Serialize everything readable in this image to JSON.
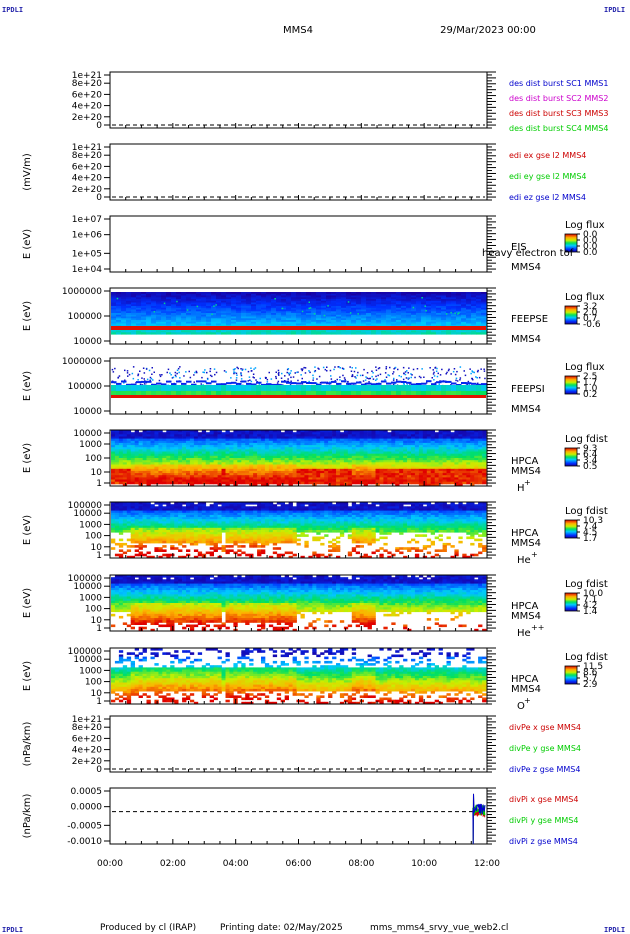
{
  "header": {
    "title": "MMS4",
    "date": "29/Mar/2023 00:00",
    "corner_label": "IPDLI"
  },
  "footer": {
    "produced_by": "Produced by cl (IRAP)",
    "printing_date": "Printing date: 02/May/2025",
    "script_name": "mms_mms4_srvy_vue_web2.cl"
  },
  "colors": {
    "dash": "#000000",
    "blue": "#0000cc",
    "magenta": "#cc00cc",
    "red": "#cc0000",
    "green": "#00cc00"
  },
  "chart_data": [
    {
      "type": "line",
      "title": "",
      "ylabel": "",
      "yticks": [
        "1e+21",
        "8e+20",
        "6e+20",
        "4e+20",
        "2e+20",
        "0"
      ],
      "series": [
        {
          "name": "des dist burst SC1 MMS1",
          "color": "#0000cc"
        },
        {
          "name": "des dist burst SC2 MMS2",
          "color": "#cc00cc"
        },
        {
          "name": "des dist burst SC3 MMS3",
          "color": "#cc0000"
        },
        {
          "name": "des dist burst SC4 MMS4",
          "color": "#00cc00"
        }
      ],
      "ylim": [
        0,
        1e+21
      ]
    },
    {
      "type": "line",
      "ylabel": "(mV/m)",
      "yticks": [
        "1e+21",
        "8e+20",
        "6e+20",
        "4e+20",
        "2e+20",
        "0"
      ],
      "series": [
        {
          "name": "edi ex gse l2 MMS4",
          "color": "#cc0000"
        },
        {
          "name": "edi ey gse l2 MMS4",
          "color": "#00cc00"
        },
        {
          "name": "edi ez gse l2 MMS4",
          "color": "#0000cc"
        }
      ],
      "ylim": [
        0,
        1e+21
      ]
    },
    {
      "type": "heatmap",
      "ylabel": "E (eV)",
      "yticks": [
        "1e+07",
        "1e+06",
        "1e+05",
        "1e+04"
      ],
      "instrument": "EIS",
      "species": "heavy electron tof",
      "spacecraft": "MMS4",
      "colorbar": {
        "title": "Log flux",
        "ticks": [
          "0.0",
          "0.0",
          "0.0",
          "0.0"
        ]
      }
    },
    {
      "type": "heatmap",
      "ylabel": "E (eV)",
      "yticks": [
        "1000000",
        "100000",
        "10000"
      ],
      "instrument": "FEEPSE",
      "spacecraft": "MMS4",
      "colorbar": {
        "title": "Log flux",
        "ticks": [
          "3.2",
          "2.0",
          "0.7",
          "-0.6"
        ]
      }
    },
    {
      "type": "heatmap",
      "ylabel": "E (eV)",
      "yticks": [
        "1000000",
        "100000",
        "10000"
      ],
      "instrument": "FEEPSI",
      "spacecraft": "MMS4",
      "colorbar": {
        "title": "Log flux",
        "ticks": [
          "2.5",
          "1.7",
          "1.0",
          "0.2"
        ]
      }
    },
    {
      "type": "heatmap",
      "ylabel": "E (eV)",
      "yticks": [
        "10000",
        "1000",
        "100",
        "10",
        "1"
      ],
      "instrument": "HPCA",
      "spacecraft": "MMS4",
      "species_base": "H",
      "species_sup": "+",
      "colorbar": {
        "title": "Log fdist",
        "ticks": [
          "9.3",
          "6.4",
          "3.4",
          "0.5"
        ]
      }
    },
    {
      "type": "heatmap",
      "ylabel": "E (eV)",
      "yticks": [
        "100000",
        "10000",
        "1000",
        "100",
        "10",
        "1"
      ],
      "instrument": "HPCA",
      "spacecraft": "MMS4",
      "species_base": "He",
      "species_sup": "+",
      "colorbar": {
        "title": "Log fdist",
        "ticks": [
          "10.3",
          "7.4",
          "4.5",
          "1.7"
        ]
      }
    },
    {
      "type": "heatmap",
      "ylabel": "E (eV)",
      "yticks": [
        "100000",
        "10000",
        "1000",
        "100",
        "10",
        "1"
      ],
      "instrument": "HPCA",
      "spacecraft": "MMS4",
      "species_base": "He",
      "species_sup": "++",
      "colorbar": {
        "title": "Log fdist",
        "ticks": [
          "10.0",
          "7.1",
          "4.2",
          "1.4"
        ]
      }
    },
    {
      "type": "heatmap",
      "ylabel": "E (eV)",
      "yticks": [
        "100000",
        "10000",
        "1000",
        "100",
        "10",
        "1"
      ],
      "instrument": "HPCA",
      "spacecraft": "MMS4",
      "species_base": "O",
      "species_sup": "+",
      "colorbar": {
        "title": "Log fdist",
        "ticks": [
          "11.5",
          "8.6",
          "5.7",
          "2.9"
        ]
      }
    },
    {
      "type": "line",
      "ylabel": "(nPa/km)",
      "yticks": [
        "1e+21",
        "8e+20",
        "6e+20",
        "4e+20",
        "2e+20",
        "0"
      ],
      "series": [
        {
          "name": "divPe x gse MMS4",
          "color": "#cc0000"
        },
        {
          "name": "divPe y gse MMS4",
          "color": "#00cc00"
        },
        {
          "name": "divPe z gse MMS4",
          "color": "#0000cc"
        }
      ],
      "ylim": [
        0,
        1e+21
      ]
    },
    {
      "type": "line",
      "ylabel": "(nPa/km)",
      "yticks": [
        "0.0005",
        "0.0000",
        "-0.0005",
        "-0.0010"
      ],
      "series": [
        {
          "name": "divPi x gse MMS4",
          "color": "#cc0000"
        },
        {
          "name": "divPi y gse MMS4",
          "color": "#00cc00"
        },
        {
          "name": "divPi z gse MMS4",
          "color": "#0000cc"
        }
      ],
      "ylim": [
        -0.0011,
        0.0008
      ]
    }
  ],
  "xaxis": {
    "ticks": [
      "00:00",
      "02:00",
      "04:00",
      "06:00",
      "08:00",
      "10:00",
      "12:00"
    ]
  }
}
